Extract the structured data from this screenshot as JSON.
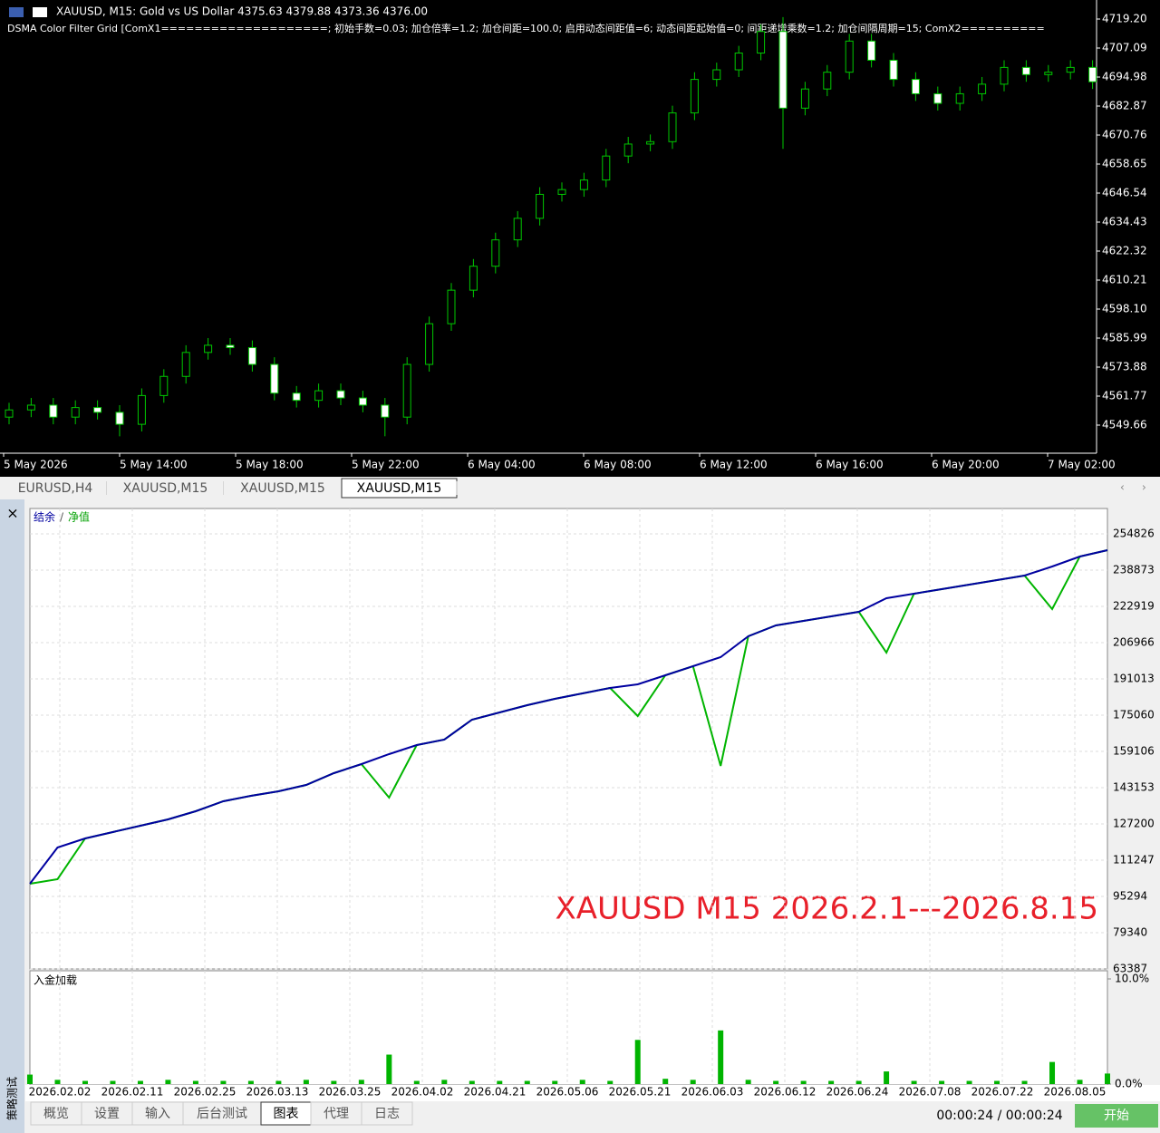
{
  "price_chart": {
    "type": "candlestick",
    "symbol_line": "XAUUSD, M15:  Gold vs US Dollar  4375.63 4379.88 4373.36 4376.00",
    "indicator_line": "DSMA Color Filter Grid [ComX1====================; 初始手数=0.03; 加仓倍率=1.2; 加仓间距=100.0; 启用动态间距值=6; 动态间距起始值=0; 间距递增乘数=1.2; 加仓间隔周期=15; ComX2==========",
    "time_labels": [
      "5 May 2026",
      "5 May 14:00",
      "5 May 18:00",
      "5 May 22:00",
      "6 May 04:00",
      "6 May 08:00",
      "6 May 12:00",
      "6 May 16:00",
      "6 May 20:00",
      "7 May 02:00"
    ],
    "open": [
      4553,
      4556,
      4558,
      4553,
      4557,
      4555,
      4550,
      4562,
      4570,
      4580,
      4583,
      4582,
      4575,
      4563,
      4560,
      4564,
      4561,
      4558,
      4553,
      4575,
      4592,
      4606,
      4616,
      4627,
      4636,
      4646,
      4648,
      4652,
      4662,
      4667,
      4668,
      4680,
      4694,
      4698,
      4705,
      4714,
      4682,
      4690,
      4697,
      4710,
      4702,
      4694,
      4688,
      4684,
      4688,
      4692,
      4699,
      4696,
      4697,
      4699
    ],
    "high": [
      4559,
      4561,
      4561,
      4560,
      4560,
      4558,
      4565,
      4573,
      4583,
      4586,
      4586,
      4585,
      4578,
      4566,
      4567,
      4567,
      4564,
      4561,
      4578,
      4595,
      4609,
      4619,
      4630,
      4639,
      4649,
      4651,
      4655,
      4665,
      4670,
      4671,
      4683,
      4697,
      4701,
      4708,
      4717,
      4720,
      4693,
      4700,
      4713,
      4713,
      4705,
      4697,
      4691,
      4691,
      4695,
      4702,
      4702,
      4700,
      4702,
      4702
    ],
    "low": [
      4550,
      4553,
      4550,
      4550,
      4552,
      4545,
      4547,
      4559,
      4567,
      4577,
      4579,
      4572,
      4560,
      4557,
      4557,
      4558,
      4555,
      4545,
      4550,
      4572,
      4589,
      4603,
      4613,
      4624,
      4633,
      4643,
      4645,
      4649,
      4659,
      4664,
      4665,
      4677,
      4691,
      4695,
      4702,
      4665,
      4679,
      4687,
      4694,
      4699,
      4691,
      4685,
      4681,
      4681,
      4685,
      4689,
      4693,
      4693,
      4694,
      4690
    ],
    "close": [
      4556,
      4558,
      4553,
      4557,
      4555,
      4550,
      4562,
      4570,
      4580,
      4583,
      4582,
      4575,
      4563,
      4560,
      4564,
      4561,
      4558,
      4553,
      4575,
      4592,
      4606,
      4616,
      4627,
      4636,
      4646,
      4648,
      4652,
      4662,
      4667,
      4668,
      4680,
      4694,
      4698,
      4705,
      4714,
      4682,
      4690,
      4697,
      4710,
      4702,
      4694,
      4688,
      4684,
      4688,
      4692,
      4699,
      4696,
      4697,
      4699,
      4693
    ],
    "ylim": [
      4537.93,
      4727.15
    ],
    "yticks": [
      {
        "value": 4719.2,
        "label": "4719.20"
      },
      4707.09,
      4694.98,
      4682.87,
      4670.76,
      4658.65,
      4646.54,
      4634.43,
      4622.32,
      4610.21,
      {
        "value": 4598.1,
        "label": "4598.10"
      },
      4585.99,
      4573.88,
      4561.77,
      4549.66
    ],
    "wick_color": "#00c800",
    "bull_body": "#000000",
    "bear_body": "#ffffff"
  },
  "chart_tabs": [
    "EURUSD,H4",
    "XAUUSD,M15",
    "XAUUSD,M15",
    "XAUUSD,M15"
  ],
  "active_chart_tab": 3,
  "tester": {
    "type": "line",
    "legend_separator": "/",
    "series": [
      {
        "name": "净值",
        "color": "#00b400",
        "values": [
          100880,
          102874,
          120821,
          123613,
          126404,
          129196,
          132786,
          137173,
          139566,
          141560,
          144352,
          149536,
          153524,
          138768,
          161900,
          164293,
          173067,
          176257,
          179448,
          182240,
          184633,
          187026,
          174662,
          192609,
          196598,
          152727,
          209759,
          214545,
          216539,
          218533,
          220527,
          202580,
          228504,
          230498,
          232492,
          234486,
          236480,
          221723,
          244855,
          247647
        ]
      },
      {
        "name": "结余",
        "color": "#0000a0",
        "values": [
          100880,
          116833,
          120821,
          123613,
          126404,
          129196,
          132786,
          137173,
          139566,
          141560,
          144352,
          149536,
          153524,
          157912,
          161900,
          164293,
          173067,
          176257,
          179448,
          182240,
          184633,
          187026,
          188621,
          192609,
          196598,
          200586,
          209759,
          214545,
          216539,
          218533,
          220527,
          226509,
          228504,
          230498,
          232492,
          234486,
          236480,
          240468,
          244855,
          247647
        ]
      }
    ],
    "ylim": [
      63387,
      265993
    ],
    "yticks": [
      254826,
      238873,
      222919,
      206966,
      191013,
      175060,
      159106,
      143153,
      127200,
      111247,
      95294,
      79340,
      63387
    ],
    "dates": [
      "2026.02.02",
      "2026.02.11",
      "2026.02.25",
      "2026.03.13",
      "2026.03.25",
      "2026.04.02",
      "2026.04.21",
      "2026.05.06",
      "2026.05.21",
      "2026.06.03",
      "2026.06.12",
      "2026.06.24",
      "2026.07.08",
      "2026.07.22",
      "2026.08.05"
    ],
    "annotation": "XAUUSD M15 2026.2.1---2026.8.15",
    "annotation_color": "#e8202a",
    "load": {
      "title": "入金加载",
      "color": "#00b400",
      "values": [
        0.9,
        0.4,
        0.3,
        0.3,
        0.3,
        0.4,
        0.3,
        0.3,
        0.3,
        0.3,
        0.4,
        0.3,
        0.4,
        2.8,
        0.3,
        0.4,
        0.3,
        0.3,
        0.3,
        0.3,
        0.4,
        0.3,
        4.2,
        0.5,
        0.4,
        5.1,
        0.4,
        0.3,
        0.3,
        0.3,
        0.3,
        1.2,
        0.3,
        0.3,
        0.3,
        0.3,
        0.3,
        2.1,
        0.4,
        1.0
      ],
      "ylim": [
        0,
        10
      ],
      "yticks": [
        {
          "value": 10,
          "label": "10.0%"
        },
        {
          "value": 0,
          "label": "0.0%"
        }
      ]
    }
  },
  "side_label": "策略测试",
  "bottom_tabs": [
    "概览",
    "设置",
    "输入",
    "后台测试",
    "图表",
    "代理",
    "日志"
  ],
  "active_bottom_tab": 4,
  "timer": "00:00:24 / 00:00:24",
  "start_button": "开始"
}
